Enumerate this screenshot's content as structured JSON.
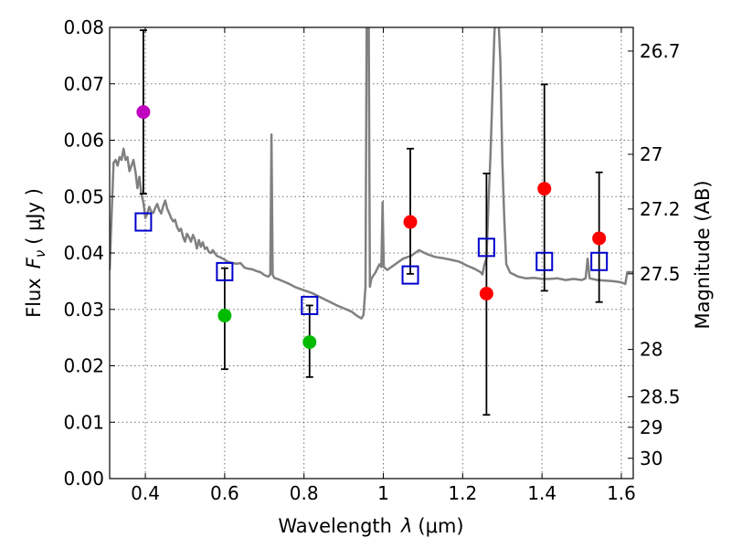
{
  "chart_data": {
    "type": "scatter",
    "xlabel_text": "Wavelength",
    "xlabel_symbol": "λ",
    "xlabel_unit": "(μm)",
    "ylabel_text": "Flux",
    "ylabel_symbol": "F",
    "ylabel_subscript": "ν",
    "ylabel_unit": "( μJy )",
    "y2label": "Magnitude (AB)",
    "xlim": [
      0.31,
      1.63
    ],
    "ylim": [
      0.0,
      0.08
    ],
    "xticks": [
      0.4,
      0.6,
      0.8,
      1.0,
      1.2,
      1.4,
      1.6
    ],
    "xtick_labels": [
      "0.4",
      "0.6",
      "0.8",
      "1",
      "1.2",
      "1.4",
      "1.6"
    ],
    "yticks": [
      0.0,
      0.01,
      0.02,
      0.03,
      0.04,
      0.05,
      0.06,
      0.07,
      0.08
    ],
    "ytick_labels": [
      "0.00",
      "0.01",
      "0.02",
      "0.03",
      "0.04",
      "0.05",
      "0.06",
      "0.07",
      "0.08"
    ],
    "y2ticks": [
      {
        "flux": 0.0758,
        "label": "26.7"
      },
      {
        "flux": 0.0575,
        "label": "27"
      },
      {
        "flux": 0.0478,
        "label": "27.2"
      },
      {
        "flux": 0.0363,
        "label": "27.5"
      },
      {
        "flux": 0.0229,
        "label": "28"
      },
      {
        "flux": 0.0145,
        "label": "28.5"
      },
      {
        "flux": 0.0091,
        "label": "29"
      },
      {
        "flux": 0.0036,
        "label": "30"
      }
    ],
    "grid": true,
    "photometry": [
      {
        "band": "blue",
        "x": 0.395,
        "y": 0.065,
        "err_low": 0.0505,
        "err_high": 0.0795,
        "color": "#bf00bf"
      },
      {
        "band": "green1",
        "x": 0.6,
        "y": 0.0289,
        "err_low": 0.0194,
        "err_high": 0.0373,
        "color": "#00bb00"
      },
      {
        "band": "green2",
        "x": 0.814,
        "y": 0.0242,
        "err_low": 0.018,
        "err_high": 0.0307,
        "color": "#00bb00"
      },
      {
        "band": "red1",
        "x": 1.068,
        "y": 0.0455,
        "err_low": 0.0363,
        "err_high": 0.0585,
        "color": "#ff0000"
      },
      {
        "band": "red2",
        "x": 1.26,
        "y": 0.0328,
        "err_low": 0.0113,
        "err_high": 0.0541,
        "color": "#ff0000"
      },
      {
        "band": "red3",
        "x": 1.406,
        "y": 0.0514,
        "err_low": 0.0333,
        "err_high": 0.0699,
        "color": "#ff0000"
      },
      {
        "band": "red4",
        "x": 1.544,
        "y": 0.0426,
        "err_low": 0.0313,
        "err_high": 0.0543,
        "color": "#ff0000"
      }
    ],
    "model_photometry": [
      {
        "x": 0.395,
        "y": 0.0455
      },
      {
        "x": 0.6,
        "y": 0.0367
      },
      {
        "x": 0.814,
        "y": 0.0307
      },
      {
        "x": 1.068,
        "y": 0.0361
      },
      {
        "x": 1.26,
        "y": 0.041
      },
      {
        "x": 1.406,
        "y": 0.0385
      },
      {
        "x": 1.544,
        "y": 0.0385
      }
    ],
    "model_square_color": "#0000cc",
    "spectrum_color": "#808080",
    "spectrum": [
      [
        0.31,
        0.037
      ],
      [
        0.315,
        0.047
      ],
      [
        0.32,
        0.056
      ],
      [
        0.325,
        0.0565
      ],
      [
        0.33,
        0.0555
      ],
      [
        0.335,
        0.057
      ],
      [
        0.34,
        0.0565
      ],
      [
        0.345,
        0.0585
      ],
      [
        0.35,
        0.0565
      ],
      [
        0.355,
        0.057
      ],
      [
        0.36,
        0.0545
      ],
      [
        0.365,
        0.0555
      ],
      [
        0.37,
        0.0565
      ],
      [
        0.375,
        0.0545
      ],
      [
        0.38,
        0.0515
      ],
      [
        0.385,
        0.0535
      ],
      [
        0.39,
        0.0505
      ],
      [
        0.395,
        0.049
      ],
      [
        0.4,
        0.0462
      ],
      [
        0.405,
        0.047
      ],
      [
        0.41,
        0.0482
      ],
      [
        0.415,
        0.0473
      ],
      [
        0.42,
        0.0471
      ],
      [
        0.425,
        0.048
      ],
      [
        0.43,
        0.0487
      ],
      [
        0.435,
        0.0476
      ],
      [
        0.44,
        0.047
      ],
      [
        0.445,
        0.0483
      ],
      [
        0.45,
        0.0493
      ],
      [
        0.455,
        0.0479
      ],
      [
        0.46,
        0.0471
      ],
      [
        0.465,
        0.0462
      ],
      [
        0.47,
        0.0456
      ],
      [
        0.475,
        0.0459
      ],
      [
        0.48,
        0.0446
      ],
      [
        0.485,
        0.0439
      ],
      [
        0.49,
        0.0443
      ],
      [
        0.495,
        0.0429
      ],
      [
        0.5,
        0.042
      ],
      [
        0.505,
        0.0434
      ],
      [
        0.51,
        0.0428
      ],
      [
        0.515,
        0.042
      ],
      [
        0.52,
        0.0432
      ],
      [
        0.525,
        0.0424
      ],
      [
        0.53,
        0.0408
      ],
      [
        0.535,
        0.0423
      ],
      [
        0.54,
        0.0411
      ],
      [
        0.545,
        0.0419
      ],
      [
        0.55,
        0.0407
      ],
      [
        0.555,
        0.041
      ],
      [
        0.56,
        0.0402
      ],
      [
        0.565,
        0.04
      ],
      [
        0.57,
        0.0405
      ],
      [
        0.58,
        0.0395
      ],
      [
        0.59,
        0.0392
      ],
      [
        0.6,
        0.0388
      ],
      [
        0.61,
        0.0384
      ],
      [
        0.62,
        0.0382
      ],
      [
        0.63,
        0.0381
      ],
      [
        0.64,
        0.0382
      ],
      [
        0.65,
        0.0374
      ],
      [
        0.66,
        0.0372
      ],
      [
        0.67,
        0.0371
      ],
      [
        0.68,
        0.0368
      ],
      [
        0.69,
        0.0366
      ],
      [
        0.7,
        0.0361
      ],
      [
        0.71,
        0.0358
      ],
      [
        0.715,
        0.0362
      ],
      [
        0.718,
        0.061
      ],
      [
        0.721,
        0.0362
      ],
      [
        0.725,
        0.0356
      ],
      [
        0.74,
        0.0352
      ],
      [
        0.76,
        0.0346
      ],
      [
        0.78,
        0.0339
      ],
      [
        0.8,
        0.0334
      ],
      [
        0.82,
        0.0329
      ],
      [
        0.84,
        0.0322
      ],
      [
        0.86,
        0.0315
      ],
      [
        0.88,
        0.0308
      ],
      [
        0.9,
        0.0302
      ],
      [
        0.92,
        0.0296
      ],
      [
        0.935,
        0.0288
      ],
      [
        0.945,
        0.0284
      ],
      [
        0.95,
        0.029
      ],
      [
        0.955,
        0.034
      ],
      [
        0.958,
        0.082
      ],
      [
        0.963,
        0.082
      ],
      [
        0.966,
        0.034
      ],
      [
        0.97,
        0.0355
      ],
      [
        0.98,
        0.0365
      ],
      [
        0.99,
        0.038
      ],
      [
        0.995,
        0.0375
      ],
      [
        0.998,
        0.049
      ],
      [
        1.001,
        0.0375
      ],
      [
        1.01,
        0.037
      ],
      [
        1.03,
        0.038
      ],
      [
        1.05,
        0.039
      ],
      [
        1.07,
        0.0395
      ],
      [
        1.09,
        0.0405
      ],
      [
        1.11,
        0.0398
      ],
      [
        1.13,
        0.0393
      ],
      [
        1.15,
        0.0391
      ],
      [
        1.17,
        0.0388
      ],
      [
        1.19,
        0.0385
      ],
      [
        1.21,
        0.0378
      ],
      [
        1.23,
        0.0372
      ],
      [
        1.245,
        0.0366
      ],
      [
        1.25,
        0.0362
      ],
      [
        1.255,
        0.038
      ],
      [
        1.26,
        0.039
      ],
      [
        1.265,
        0.049
      ],
      [
        1.27,
        0.057
      ],
      [
        1.275,
        0.068
      ],
      [
        1.28,
        0.079
      ],
      [
        1.283,
        0.082
      ],
      [
        1.29,
        0.082
      ],
      [
        1.295,
        0.074
      ],
      [
        1.3,
        0.056
      ],
      [
        1.305,
        0.046
      ],
      [
        1.31,
        0.038
      ],
      [
        1.32,
        0.0365
      ],
      [
        1.34,
        0.0358
      ],
      [
        1.36,
        0.0355
      ],
      [
        1.38,
        0.0356
      ],
      [
        1.4,
        0.0354
      ],
      [
        1.42,
        0.0354
      ],
      [
        1.44,
        0.0355
      ],
      [
        1.46,
        0.0352
      ],
      [
        1.48,
        0.0354
      ],
      [
        1.5,
        0.0352
      ],
      [
        1.51,
        0.0355
      ],
      [
        1.515,
        0.039
      ],
      [
        1.52,
        0.0355
      ],
      [
        1.54,
        0.0352
      ],
      [
        1.56,
        0.0351
      ],
      [
        1.58,
        0.035
      ],
      [
        1.6,
        0.0348
      ],
      [
        1.61,
        0.0345
      ],
      [
        1.615,
        0.0366
      ],
      [
        1.63,
        0.0366
      ]
    ]
  }
}
